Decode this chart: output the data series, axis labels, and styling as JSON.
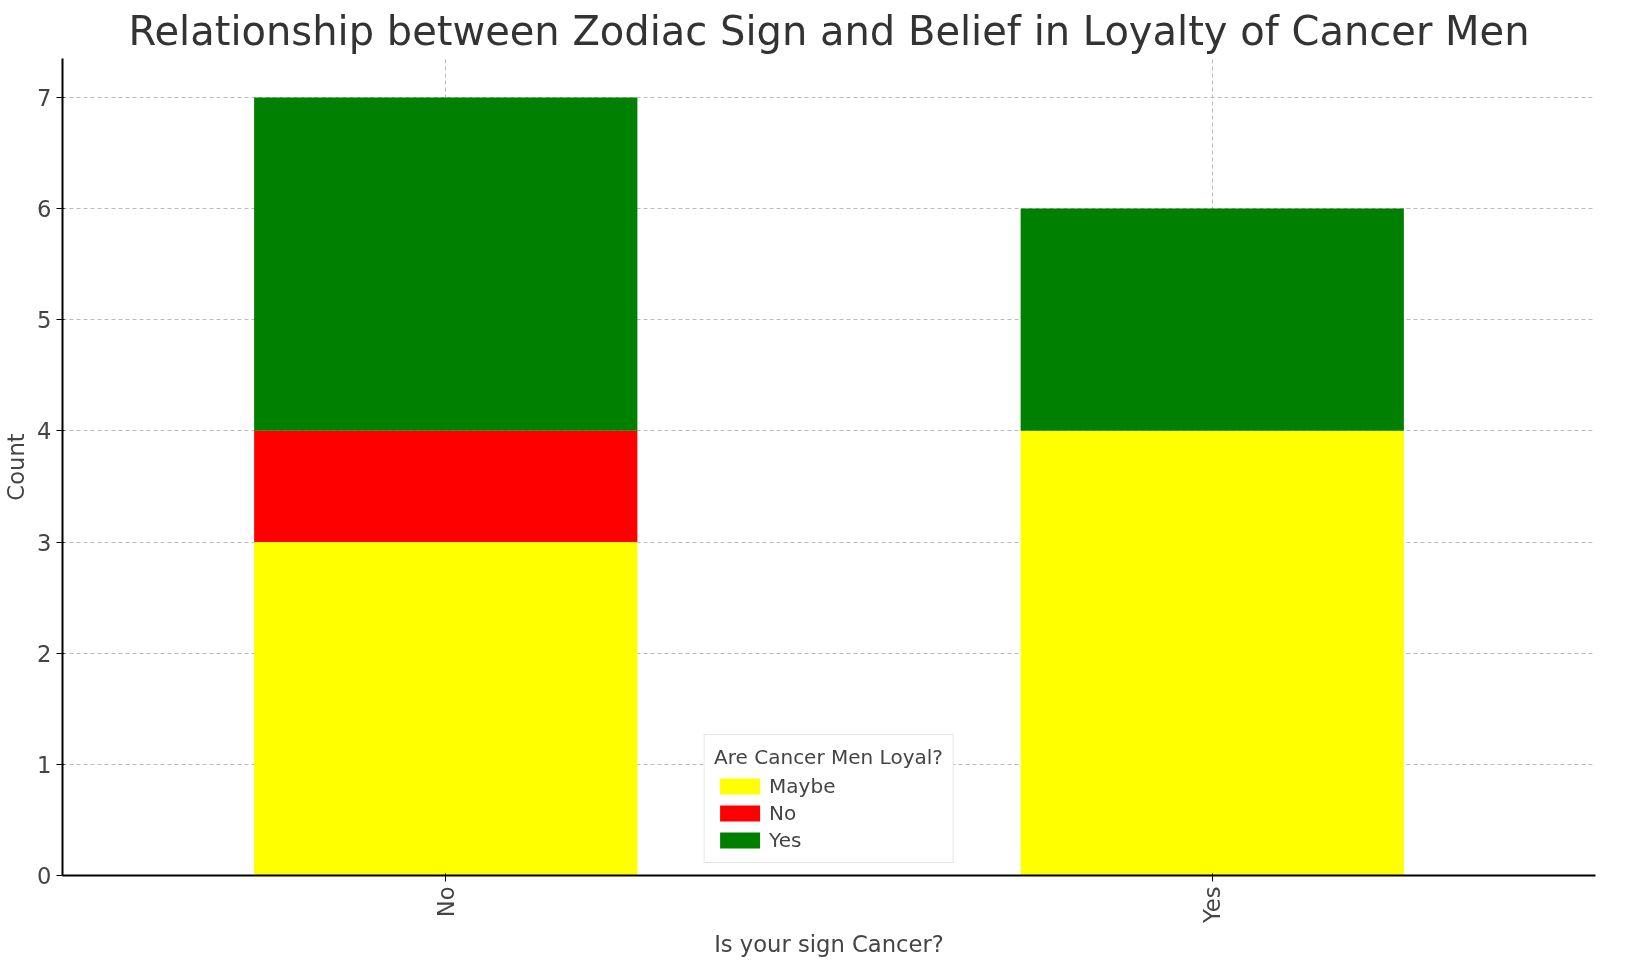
{
  "chart_data": {
    "type": "bar",
    "title": "Relationship between Zodiac Sign and Belief in Loyalty of Cancer Men",
    "xlabel": "Is your sign Cancer?",
    "ylabel": "Count",
    "legend_title": "Are Cancer Men Loyal?",
    "categories": [
      "No",
      "Yes"
    ],
    "series": [
      {
        "name": "Maybe",
        "color": "#ffff00",
        "values": [
          3,
          4
        ]
      },
      {
        "name": "No",
        "color": "#ff0000",
        "values": [
          1,
          0
        ]
      },
      {
        "name": "Yes",
        "color": "#008000",
        "values": [
          3,
          2
        ]
      }
    ],
    "stacked": true,
    "ylim": [
      0,
      7.35
    ],
    "yticks": [
      0,
      1,
      2,
      3,
      4,
      5,
      6,
      7
    ],
    "grid": true,
    "legend": "bottom"
  }
}
